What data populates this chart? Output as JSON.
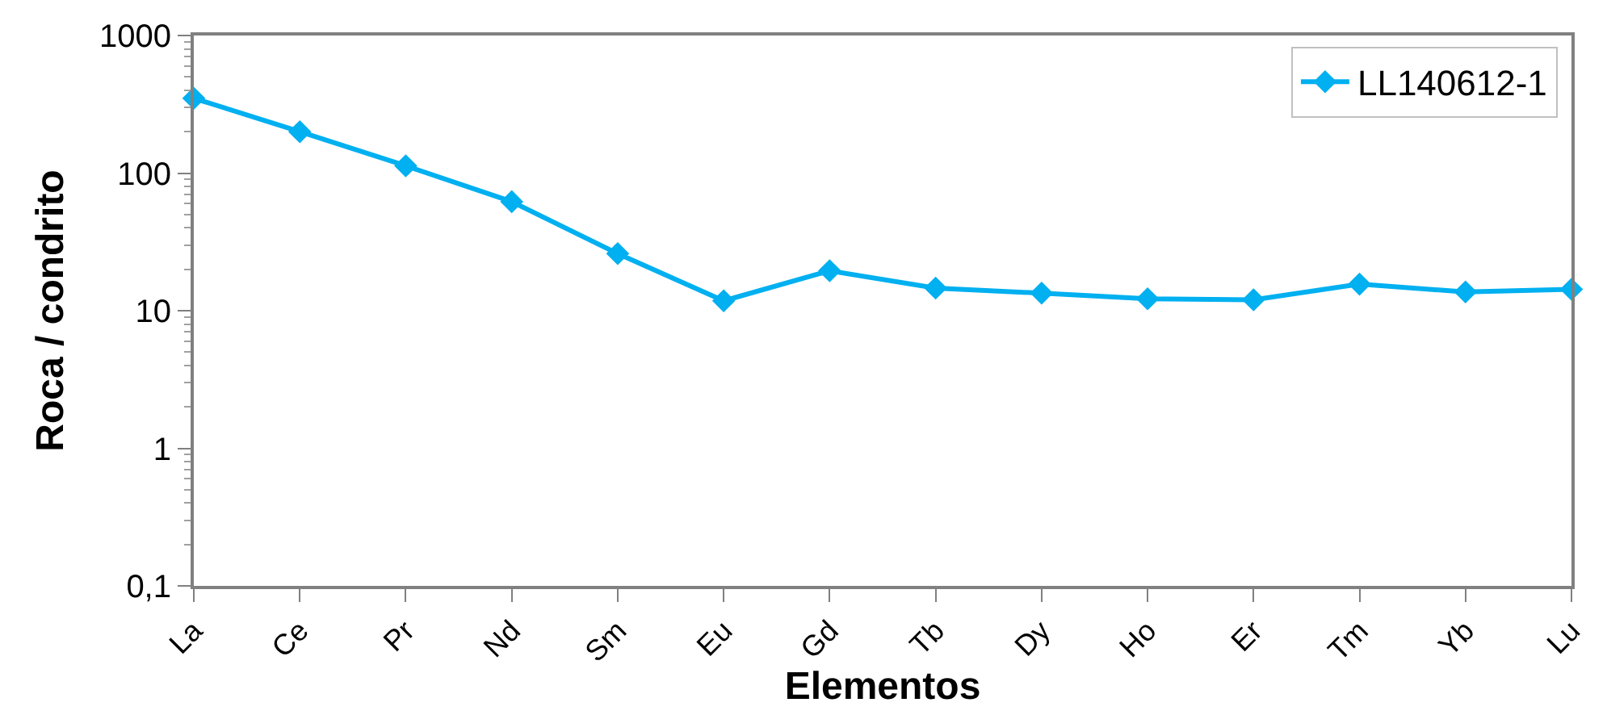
{
  "chart_data": {
    "type": "line",
    "xlabel": "Elementos",
    "ylabel": "Roca / condrito",
    "categories": [
      "La",
      "Ce",
      "Pr",
      "Nd",
      "Sm",
      "Eu",
      "Gd",
      "Tb",
      "Dy",
      "Ho",
      "Er",
      "Tm",
      "Yb",
      "Lu"
    ],
    "series": [
      {
        "name": "LL140612-1",
        "color": "#00b0f0",
        "values": [
          350,
          200,
          113,
          62,
          26,
          11.8,
          19.5,
          14.6,
          13.4,
          12.2,
          12.0,
          15.6,
          13.7,
          14.3
        ]
      }
    ],
    "log": true,
    "ylim": [
      0.1,
      1000
    ],
    "yticks": [
      {
        "value": 0.1,
        "label": "0,1"
      },
      1,
      10,
      100,
      1000
    ],
    "legend": "top right",
    "marker": "diamond",
    "line_style": "solid"
  }
}
